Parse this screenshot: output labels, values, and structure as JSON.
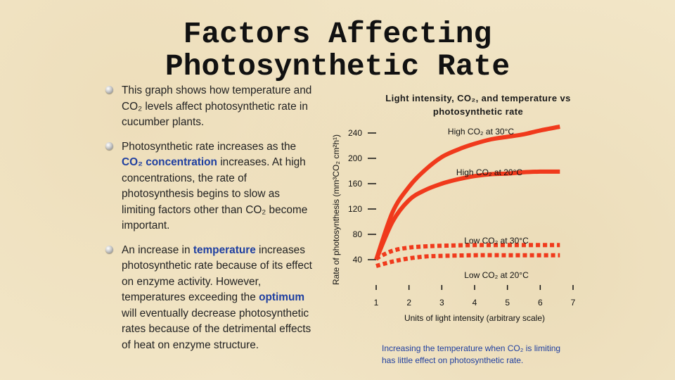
{
  "title": [
    "Factors Affecting",
    "Photosynthetic Rate"
  ],
  "bullets": [
    {
      "segments": [
        {
          "text": "This graph shows how temperature and CO₂ levels affect photosynthetic rate in cucumber plants."
        }
      ]
    },
    {
      "segments": [
        {
          "text": "Photosynthetic rate increases as the "
        },
        {
          "text": "CO₂ concentration",
          "highlight": true
        },
        {
          "text": " increases. At high concentrations, the rate of photosynthesis begins to slow as limiting factors other than CO₂ become important."
        }
      ]
    },
    {
      "segments": [
        {
          "text": "An increase in "
        },
        {
          "text": "temperature",
          "highlight": true
        },
        {
          "text": " increases photosynthetic rate because of its effect on enzyme activity. However, temperatures exceeding the "
        },
        {
          "text": "optimum",
          "highlight": true
        },
        {
          "text": " will eventually decrease photosynthetic rates because of the detrimental effects of heat on enzyme structure."
        }
      ]
    }
  ],
  "colors": {
    "curve": "#f03a1c",
    "keyword": "#1f3fa0",
    "background": "#f3e7c9"
  },
  "chart_data": {
    "type": "line",
    "title": "Light intensity, CO₂, and temperature vs photosynthetic rate",
    "xlabel": "Units of light intensity (arbitrary scale)",
    "ylabel": "Rate of photosynthesis (mm³CO₂ cm²h¹)",
    "xlim": [
      1,
      7
    ],
    "ylim": [
      0,
      240
    ],
    "x_ticks": [
      1,
      2,
      3,
      4,
      5,
      6,
      7
    ],
    "y_ticks": [
      40,
      80,
      120,
      160,
      200,
      240
    ],
    "series": [
      {
        "name": "High CO₂ at 30°C",
        "style": "solid",
        "points": [
          [
            1,
            40
          ],
          [
            1.5,
            115
          ],
          [
            2,
            155
          ],
          [
            2.5,
            182
          ],
          [
            3,
            202
          ],
          [
            3.5,
            214
          ],
          [
            4,
            223
          ],
          [
            4.5,
            230
          ],
          [
            5,
            234
          ],
          [
            5.5,
            238
          ],
          [
            6,
            244
          ],
          [
            6.6,
            250
          ]
        ]
      },
      {
        "name": "High CO₂ at 20°C",
        "style": "solid",
        "points": [
          [
            1,
            40
          ],
          [
            1.5,
            100
          ],
          [
            2,
            134
          ],
          [
            2.5,
            150
          ],
          [
            3,
            160
          ],
          [
            3.5,
            167
          ],
          [
            4,
            172
          ],
          [
            4.5,
            175
          ],
          [
            5,
            176
          ],
          [
            5.5,
            178
          ],
          [
            6,
            179
          ],
          [
            6.6,
            179
          ]
        ]
      },
      {
        "name": "Low CO₂ at 30°C",
        "style": "dashed",
        "points": [
          [
            1,
            42
          ],
          [
            1.5,
            54
          ],
          [
            2,
            59
          ],
          [
            2.5,
            61
          ],
          [
            3,
            62
          ],
          [
            4,
            63
          ],
          [
            5,
            63
          ],
          [
            6.6,
            63
          ]
        ]
      },
      {
        "name": "Low CO₂ at 20°C",
        "style": "dashed",
        "points": [
          [
            1,
            30
          ],
          [
            1.5,
            37
          ],
          [
            2,
            42
          ],
          [
            2.5,
            45
          ],
          [
            3,
            46
          ],
          [
            4,
            47
          ],
          [
            5,
            47
          ],
          [
            6.6,
            47
          ]
        ]
      }
    ],
    "annotations": [
      {
        "text": "High CO₂ at 30°C",
        "series": "High CO₂ at 30°C"
      },
      {
        "text": "High CO₂ at 20°C",
        "series": "High CO₂ at 20°C"
      },
      {
        "text": "Low CO₂ at 30°C",
        "series": "Low CO₂ at 30°C"
      },
      {
        "text": "Low CO₂ at 20°C",
        "series": "Low CO₂ at 20°C"
      }
    ],
    "note": "Increasing the temperature when CO₂ is limiting has little effect on photosynthetic rate."
  }
}
